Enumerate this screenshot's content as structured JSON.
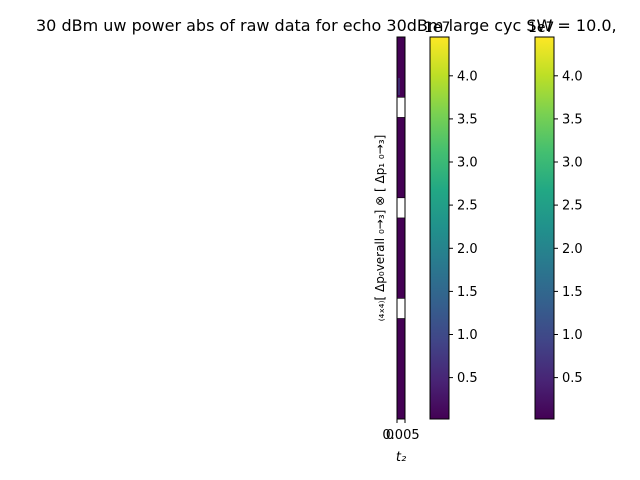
{
  "chart_data": {
    "type": "heatmap",
    "title": "30 dBm uw power abs of raw data for echo 30dBm large cyc SW = 10.0,",
    "xlabel": "t₂",
    "ylabel": "₍₄ₓ₄₎[ Δp₀verall ₀→₃] ⊗ [ Δp₁ ₀→₃]",
    "x_ticks": [
      "0",
      "0.005"
    ],
    "colormap": "viridis",
    "masked_blocks_top_to_bottom": [
      3,
      8,
      13
    ],
    "rows_total": 19,
    "colorbars": [
      {
        "name": "colorbar-1",
        "offset_label": "1e7",
        "ticks": [
          0.5,
          1.0,
          1.5,
          2.0,
          2.5,
          3.0,
          3.5,
          4.0
        ],
        "tick_labels": [
          "0.5",
          "1.0",
          "1.5",
          "2.0",
          "2.5",
          "3.0",
          "3.5",
          "4.0"
        ],
        "range": [
          0.02,
          4.45
        ]
      },
      {
        "name": "colorbar-2",
        "offset_label": "1e7",
        "ticks": [
          0.5,
          1.0,
          1.5,
          2.0,
          2.5,
          3.0,
          3.5,
          4.0
        ],
        "tick_labels": [
          "0.5",
          "1.0",
          "1.5",
          "2.0",
          "2.5",
          "3.0",
          "3.5",
          "4.0"
        ],
        "range": [
          0.02,
          4.45
        ]
      }
    ]
  }
}
